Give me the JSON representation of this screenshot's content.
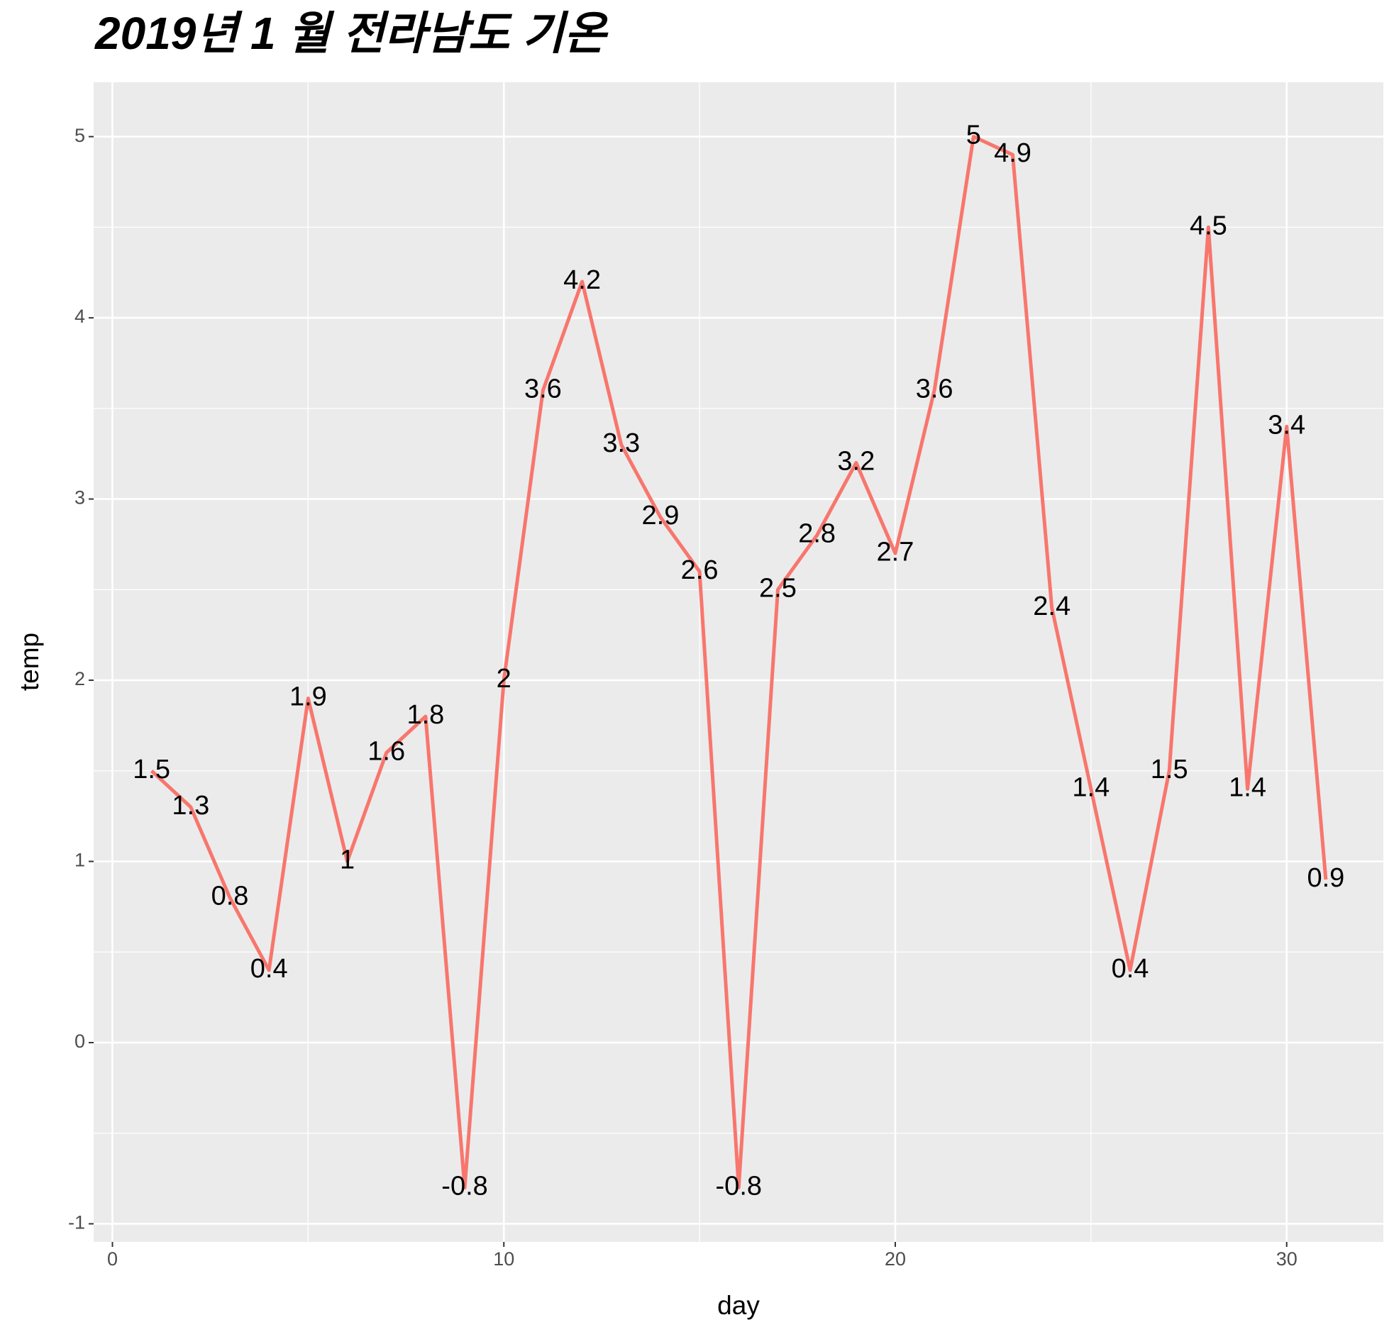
{
  "chart_data": {
    "type": "line",
    "title": "2019년 1 월 전라남도 기온",
    "x_label": "day",
    "y_label": "temp",
    "x": [
      1,
      2,
      3,
      4,
      5,
      6,
      7,
      8,
      9,
      10,
      11,
      12,
      13,
      14,
      15,
      16,
      17,
      18,
      19,
      20,
      21,
      22,
      23,
      24,
      25,
      26,
      27,
      28,
      29,
      30,
      31
    ],
    "series": [
      {
        "name": "temp",
        "color": "#F8766D",
        "values": [
          1.5,
          1.3,
          0.8,
          0.4,
          1.9,
          1,
          1.6,
          1.8,
          -0.8,
          2,
          3.6,
          4.2,
          3.3,
          2.9,
          2.6,
          -0.8,
          2.5,
          2.8,
          3.2,
          2.7,
          3.6,
          5,
          4.9,
          2.4,
          1.4,
          0.4,
          1.5,
          4.5,
          1.4,
          3.4,
          0.9
        ]
      }
    ],
    "xlim": [
      -0.48,
      32.47
    ],
    "xticks": [
      0,
      10,
      20,
      30
    ],
    "ylim": [
      -1.1,
      5.3
    ],
    "yticks": [
      -1,
      0,
      1,
      2,
      3,
      4,
      5
    ],
    "grid": true
  }
}
